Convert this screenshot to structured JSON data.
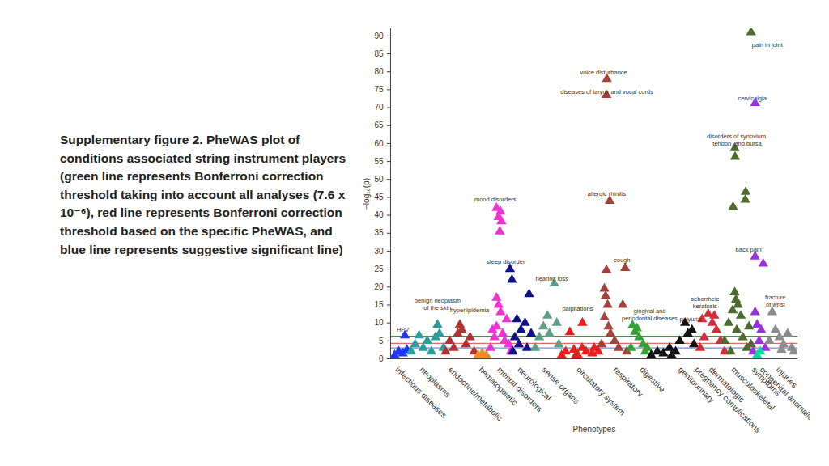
{
  "chart_data": {
    "type": "scatter",
    "caption": "Supplementary figure 2. PheWAS plot of conditions associated string instrument players (green line represents Bonferroni correction threshold taking into account all analyses (7.6 x 10⁻⁶), red line represents Bonferroni correction threshold based on the specific PheWAS, and blue line represents suggestive significant line)",
    "x_label": "Phenotypes",
    "y_label": "−log₁₀(p)",
    "xlim": [
      0,
      100
    ],
    "ylim": [
      0,
      92
    ],
    "xticks": [
      {
        "value": 1.5,
        "label": "infectious diseases"
      },
      {
        "value": 7.5,
        "label": "neoplasms"
      },
      {
        "value": 14.5,
        "label": "endocrine/metabolic"
      },
      {
        "value": 22,
        "label": "hematopoietic"
      },
      {
        "value": 26.5,
        "label": "mental disorders"
      },
      {
        "value": 31.5,
        "label": "neurological"
      },
      {
        "value": 37.5,
        "label": "sense organs"
      },
      {
        "value": 46,
        "label": "circulatory system"
      },
      {
        "value": 55,
        "label": "respiratory"
      },
      {
        "value": 61.5,
        "label": "digestive"
      },
      {
        "value": 71,
        "label": "genitourinary"
      },
      {
        "value": 75,
        "label": "pregnancy complications"
      },
      {
        "value": 78.5,
        "label": "dermatologic"
      },
      {
        "value": 84,
        "label": "musculoskeletal"
      },
      {
        "value": 89,
        "label": "symptoms"
      },
      {
        "value": 91,
        "label": "congenital anomalies"
      },
      {
        "value": 95,
        "label": "injuries"
      }
    ],
    "yticks": [
      0,
      5,
      10,
      15,
      20,
      25,
      30,
      35,
      40,
      45,
      50,
      55,
      60,
      65,
      70,
      75,
      80,
      85,
      90
    ],
    "reference_lines": [
      {
        "value": 6.3,
        "color": "#3c9a3c"
      },
      {
        "value": 4.3,
        "color": "#e06a6a"
      },
      {
        "value": 3.0,
        "color": "#7090d0"
      }
    ],
    "series": [
      {
        "name": "infectious diseases",
        "color": "#1f35ff",
        "marker": "triangle",
        "x": [
          1,
          2,
          3,
          3.5,
          4
        ],
        "values": [
          1,
          2,
          1.5,
          6.5,
          2.5
        ]
      },
      {
        "name": "neoplasms",
        "color": "#2a9d9d",
        "marker": "triangle",
        "x": [
          5,
          6,
          7,
          8,
          9,
          10,
          11,
          11.5,
          12,
          13
        ],
        "values": [
          2,
          4,
          6.5,
          3,
          5,
          2,
          6,
          9.5,
          7,
          3
        ]
      },
      {
        "name": "endocrine/metabolic",
        "color": "#b03232",
        "marker": "triangle",
        "x": [
          13.5,
          14.5,
          15.5,
          16.5,
          17,
          17.5,
          18.5,
          19.5,
          20.5
        ],
        "values": [
          2,
          5,
          3,
          7,
          9.5,
          8,
          4,
          6,
          2
        ]
      },
      {
        "name": "hematopoietic",
        "color": "#f08a24",
        "marker": "triangle",
        "x": [
          21.5,
          22.5,
          23.5
        ],
        "values": [
          1,
          1.5,
          1
        ]
      },
      {
        "name": "mental disorders",
        "color": "#f032d2",
        "marker": "triangle",
        "x": [
          26,
          27,
          26.5,
          27.2,
          26.8,
          26,
          26.5,
          27,
          25,
          25.5,
          26,
          27.5,
          28,
          28.5,
          29,
          24.5,
          29.5
        ],
        "values": [
          42,
          41,
          39.5,
          38.3,
          35.5,
          17,
          15,
          13,
          8,
          6,
          9,
          7,
          5,
          11,
          4,
          3,
          2
        ]
      },
      {
        "name": "neurological",
        "color": "#10108a",
        "marker": "triangle",
        "x": [
          29.3,
          29.8,
          34,
          31,
          32,
          33,
          30.5,
          31.5,
          33.5,
          34.5,
          30
        ],
        "values": [
          25,
          22,
          18,
          11,
          8,
          10,
          6,
          4,
          3,
          7,
          2
        ]
      },
      {
        "name": "sense organs",
        "color": "#5e9e88",
        "marker": "triangle",
        "x": [
          35.5,
          36.5,
          37.5,
          38.5,
          39,
          40.2,
          40.8,
          41.3
        ],
        "values": [
          3,
          6,
          9,
          12,
          7,
          21,
          10,
          4
        ]
      },
      {
        "name": "circulatory system",
        "color": "#ee1c1c",
        "marker": "triangle",
        "x": [
          42,
          43,
          44,
          45,
          45.5,
          46,
          47,
          47.1,
          48,
          49.5,
          50,
          51
        ],
        "values": [
          1,
          2,
          7.4,
          2.5,
          1,
          1,
          3,
          10,
          2,
          1.5,
          3,
          2
        ]
      },
      {
        "name": "respiratory",
        "color": "#a3413b",
        "marker": "triangle",
        "x": [
          53.1,
          53,
          53.8,
          57.6,
          53,
          52.5,
          52.8,
          53.3,
          57,
          52.5,
          53.5,
          54,
          55,
          56,
          51.8,
          58
        ],
        "values": [
          78,
          73.5,
          44,
          25.3,
          24.7,
          19.5,
          17.5,
          15,
          15,
          11.5,
          9,
          7,
          5,
          3,
          4,
          2
        ]
      },
      {
        "name": "digestive",
        "color": "#36a236",
        "marker": "triangle",
        "x": [
          59.4,
          60,
          60.5,
          61,
          62,
          62.5,
          63,
          59
        ],
        "values": [
          9.3,
          7.5,
          8.5,
          6,
          4,
          2,
          3,
          3
        ]
      },
      {
        "name": "genitourinary",
        "color": "#111111",
        "marker": "triangle",
        "x": [
          64,
          65.5,
          67,
          68.5,
          69,
          70,
          71,
          72.3,
          73,
          74,
          74.5
        ],
        "values": [
          1,
          2,
          1.5,
          3,
          1,
          2,
          5,
          10,
          7,
          8,
          4
        ]
      },
      {
        "name": "dermatologic",
        "color": "#d62a3a",
        "marker": "triangle",
        "x": [
          76,
          76.5,
          77,
          78,
          79,
          79.5,
          80,
          81,
          82
        ],
        "values": [
          3,
          11,
          6,
          12.5,
          10,
          12,
          8,
          5,
          2
        ]
      },
      {
        "name": "musculoskeletal",
        "color": "#4c6b2c",
        "marker": "triangle",
        "x": [
          88.5,
          84.5,
          84.6,
          87.2,
          87.1,
          84.1,
          84.5,
          84.8,
          85.3,
          84,
          86,
          83,
          85,
          86.5,
          88,
          82,
          87.5,
          83.5,
          88.5
        ],
        "values": [
          91,
          58.7,
          56.3,
          46.5,
          44.3,
          42.3,
          18.5,
          16.5,
          15,
          13.5,
          12,
          10,
          8,
          6,
          9,
          5,
          3,
          2,
          4
        ]
      },
      {
        "name": "symptoms",
        "color": "#9b30e0",
        "marker": "triangle",
        "x": [
          89.5,
          89.5,
          91.5,
          89.5,
          90,
          91,
          90.5,
          92,
          89
        ],
        "values": [
          71.3,
          28.5,
          26.5,
          13,
          9.5,
          8,
          5,
          3,
          2
        ]
      },
      {
        "name": "congenital anomalies",
        "color": "#00dc9c",
        "marker": "triangle",
        "x": [
          90,
          90.8
        ],
        "values": [
          1,
          2
        ]
      },
      {
        "name": "injuries",
        "color": "#8c8c8c",
        "marker": "triangle",
        "x": [
          93,
          93.7,
          94.5,
          95.5,
          96,
          96.5,
          97.5,
          98.5,
          99
        ],
        "values": [
          5,
          13,
          8,
          6,
          2.5,
          4,
          7,
          3,
          2
        ]
      }
    ],
    "annotations": [
      {
        "text": "pain in joint",
        "x": 92.5,
        "y": 87.6
      },
      {
        "text": "voice disturbance",
        "x": 52.3,
        "y": 79.8
      },
      {
        "text": "diseases of larynx and vocal cords",
        "x": 53.1,
        "y": 74.6
      },
      {
        "text": "cervicalgia",
        "x": 88.8,
        "y": 72.8
      },
      {
        "text": "disorders of synovium,\ntendon, and bursa",
        "x": 85.1,
        "y": 61
      },
      {
        "text": "allergic rhinitis",
        "x": 53.1,
        "y": 46.2
      },
      {
        "text": "mood disorders",
        "x": 25.7,
        "y": 44.4
      },
      {
        "text": "back pain",
        "x": 87.9,
        "y": 30.6
      },
      {
        "text": "sleep disorder",
        "x": 28.3,
        "y": 27.1
      },
      {
        "text": "cough",
        "x": 56.8,
        "y": 27.5
      },
      {
        "text": "hearing loss",
        "x": 39.6,
        "y": 22.4
      },
      {
        "text": "seborrheic\nkeratosis",
        "x": 77.2,
        "y": 15.8
      },
      {
        "text": "fracture\nof wrist",
        "x": 94.5,
        "y": 16.2
      },
      {
        "text": "benign neoplasm\nof the skin",
        "x": 11.5,
        "y": 15.4
      },
      {
        "text": "hyperlipidemia",
        "x": 19.4,
        "y": 13.6
      },
      {
        "text": "palpitations",
        "x": 45.9,
        "y": 14
      },
      {
        "text": "gingival and\nperiodontal diseases",
        "x": 63.6,
        "y": 12.3
      },
      {
        "text": "polyuria",
        "x": 73.6,
        "y": 11.2
      },
      {
        "text": "HPV",
        "x": 3,
        "y": 8.2
      }
    ]
  }
}
